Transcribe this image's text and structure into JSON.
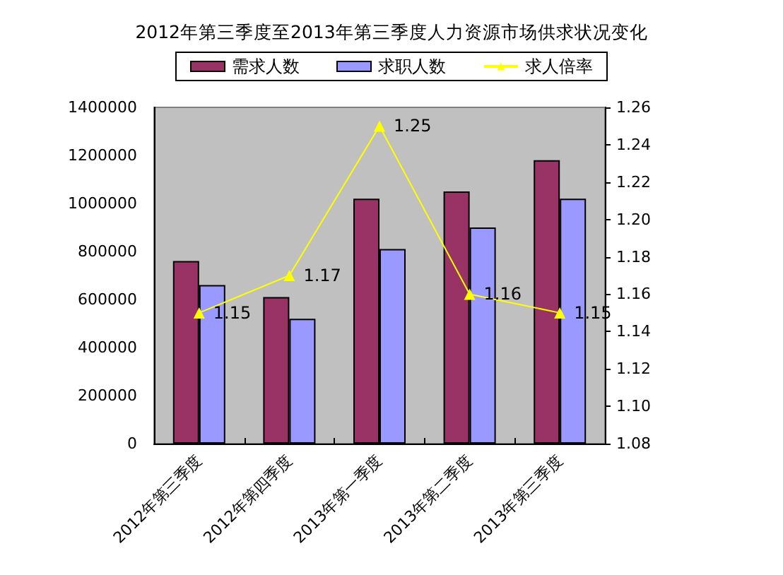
{
  "chart_data": {
    "type": "bar",
    "title": "2012年第三季度至2013年第三季度人力资源市场供求状况变化",
    "categories": [
      "2012年第三季度",
      "2012年第四季度",
      "2013年第一季度",
      "2013年第二季度",
      "2013年第三季度"
    ],
    "series": [
      {
        "name": "需求人数",
        "color": "#993366",
        "values": [
          760000,
          610000,
          1020000,
          1050000,
          1180000
        ]
      },
      {
        "name": "求职人数",
        "color": "#9999ff",
        "values": [
          660000,
          520000,
          810000,
          900000,
          1020000
        ]
      },
      {
        "name": "求人倍率",
        "type": "line",
        "axis": "y2",
        "color": "#ffff00",
        "values": [
          1.15,
          1.17,
          1.25,
          1.16,
          1.15
        ],
        "value_labels": [
          "1.15",
          "1.17",
          "1.25",
          "1.16",
          "1.15"
        ]
      }
    ],
    "ylim": [
      0,
      1400000
    ],
    "yticks": [
      0,
      200000,
      400000,
      600000,
      800000,
      1000000,
      1200000,
      1400000
    ],
    "y2lim": [
      1.08,
      1.26
    ],
    "y2ticks": [
      1.08,
      {
        "value": 1.1,
        "label": "1.10"
      },
      1.12,
      1.14,
      1.16,
      1.18,
      {
        "value": 1.2,
        "label": "1.20"
      },
      1.22,
      1.24,
      1.26
    ],
    "legend": "top",
    "grid": false,
    "marker": "triangle",
    "line_style": "solid"
  }
}
